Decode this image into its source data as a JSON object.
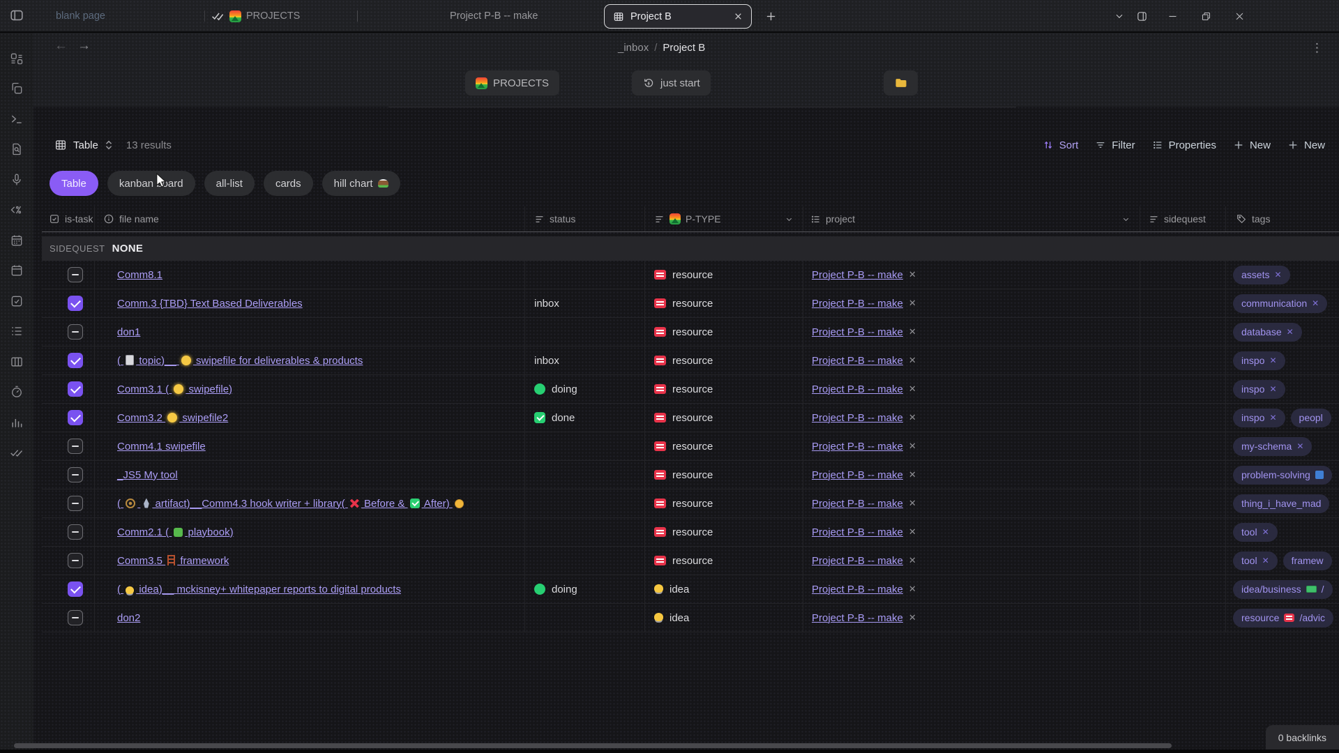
{
  "titlebar": {
    "tabs": {
      "blank": "blank page",
      "projects": "PROJECTS",
      "pb_make": "Project P-B -- make",
      "active": "Project B"
    }
  },
  "nav": {
    "parent": "_inbox",
    "separator": "/",
    "current": "Project B"
  },
  "quick": {
    "projects": "PROJECTS",
    "just_start": "just start"
  },
  "toolbar": {
    "view": "Table",
    "results": "13 results",
    "sort": "Sort",
    "filter": "Filter",
    "properties": "Properties",
    "new_a": "New",
    "new_b": "New"
  },
  "views": [
    {
      "label": "Table",
      "active": true
    },
    {
      "label": "kanban board",
      "active": false
    },
    {
      "label": "all-list",
      "active": false
    },
    {
      "label": "cards",
      "active": false
    },
    {
      "label": "hill chart",
      "active": false,
      "icon": "hill"
    }
  ],
  "table": {
    "columns": [
      {
        "label": "is-task",
        "icon": "checkbox-icon"
      },
      {
        "label": "file name",
        "icon": "info-icon"
      },
      {
        "label": "status",
        "icon": "select-icon"
      },
      {
        "label": "P-TYPE",
        "icon": "select-icon",
        "logo": "projects-logo",
        "dropdown": true
      },
      {
        "label": "project",
        "icon": "relation-icon",
        "dropdown": true
      },
      {
        "label": "sidequest",
        "icon": "select-icon"
      },
      {
        "label": "tags",
        "icon": "tag-icon"
      }
    ],
    "group": {
      "field": "SIDEQUEST",
      "value": "NONE"
    },
    "rows": [
      {
        "checked": false,
        "file": "Comm8.1",
        "status": "",
        "status_icon": "",
        "ptype": "resource",
        "project": "Project P-B -- make",
        "tags": [
          {
            "text": "assets",
            "x": true
          }
        ]
      },
      {
        "checked": true,
        "file": "Comm.3 {TBD} Text Based Deliverables",
        "status": "inbox",
        "status_icon": "",
        "ptype": "resource",
        "project": "Project P-B -- make",
        "tags": [
          {
            "text": "communication",
            "x": true
          }
        ]
      },
      {
        "checked": false,
        "file": "don1",
        "status": "",
        "status_icon": "",
        "ptype": "resource",
        "project": "Project P-B -- make",
        "tags": [
          {
            "text": "database",
            "x": true
          }
        ]
      },
      {
        "checked": true,
        "file": "( 📋 topic)__ ☀️ swipefile for deliverables & products",
        "status": "inbox",
        "status_icon": "",
        "ptype": "resource",
        "project": "Project P-B -- make",
        "tags": [
          {
            "text": "inspo",
            "x": true
          }
        ]
      },
      {
        "checked": true,
        "file": "Comm3.1 ( ☀️ swipefile)",
        "status": "doing",
        "status_icon": "dot",
        "ptype": "resource",
        "project": "Project P-B -- make",
        "tags": [
          {
            "text": "inspo",
            "x": true
          }
        ]
      },
      {
        "checked": true,
        "file": "Comm3.2  ☀️ swipefile2",
        "status": "done",
        "status_icon": "check",
        "ptype": "resource",
        "project": "Project P-B -- make",
        "tags": [
          {
            "text": "inspo",
            "x": true
          },
          {
            "text": "peopl"
          }
        ]
      },
      {
        "checked": false,
        "file": "Comm4.1 swipefile",
        "status": "",
        "status_icon": "",
        "ptype": "resource",
        "project": "Project P-B -- make",
        "tags": [
          {
            "text": "my-schema",
            "x": true
          }
        ]
      },
      {
        "checked": false,
        "file": "_JS5 My tool",
        "status": "",
        "status_icon": "",
        "ptype": "resource",
        "project": "Project P-B -- make",
        "tags": [
          {
            "text": "problem-solving",
            "icon": "book-blue"
          }
        ]
      },
      {
        "checked": false,
        "file": "( ☸️ 🚀 artifact)__Comm4.3 hook writer + library( ❌ Before & ✅ After) 🟡",
        "status": "",
        "status_icon": "",
        "ptype": "resource",
        "project": "Project P-B -- make",
        "tags": [
          {
            "text": "thing_i_have_mad"
          }
        ]
      },
      {
        "checked": false,
        "file": "Comm2.1 ( 🧩 playbook)",
        "status": "",
        "status_icon": "",
        "ptype": "resource",
        "project": "Project P-B -- make",
        "tags": [
          {
            "text": "tool",
            "x": true
          }
        ]
      },
      {
        "checked": false,
        "file": "Comm3.5 🪜 framework",
        "status": "",
        "status_icon": "",
        "ptype": "resource",
        "project": "Project P-B -- make",
        "tags": [
          {
            "text": "tool",
            "x": true
          },
          {
            "text": "framew"
          }
        ]
      },
      {
        "checked": true,
        "file": "( 💡 idea)__ mckisney+ whitepaper reports to digital products",
        "status": "doing",
        "status_icon": "dot",
        "ptype": "idea",
        "project": "Project P-B -- make",
        "tags": [
          {
            "text": "idea/business",
            "icon": "money",
            "suffix": "/"
          }
        ]
      },
      {
        "checked": false,
        "file": "don2",
        "status": "",
        "status_icon": "",
        "ptype": "idea",
        "project": "Project P-B -- make",
        "tags": [
          {
            "text": "resource",
            "icon": "resource",
            "suffix": "/advic"
          }
        ]
      }
    ]
  },
  "statusbar": {
    "backlinks": "0 backlinks"
  },
  "colors": {
    "accent_purple": "#8a5cf5",
    "link_purple": "#a79af3",
    "status_green": "#27cf72",
    "resource_red": "#e8334a",
    "idea_yellow": "#f6c740",
    "tag_text": "#a193ef"
  }
}
